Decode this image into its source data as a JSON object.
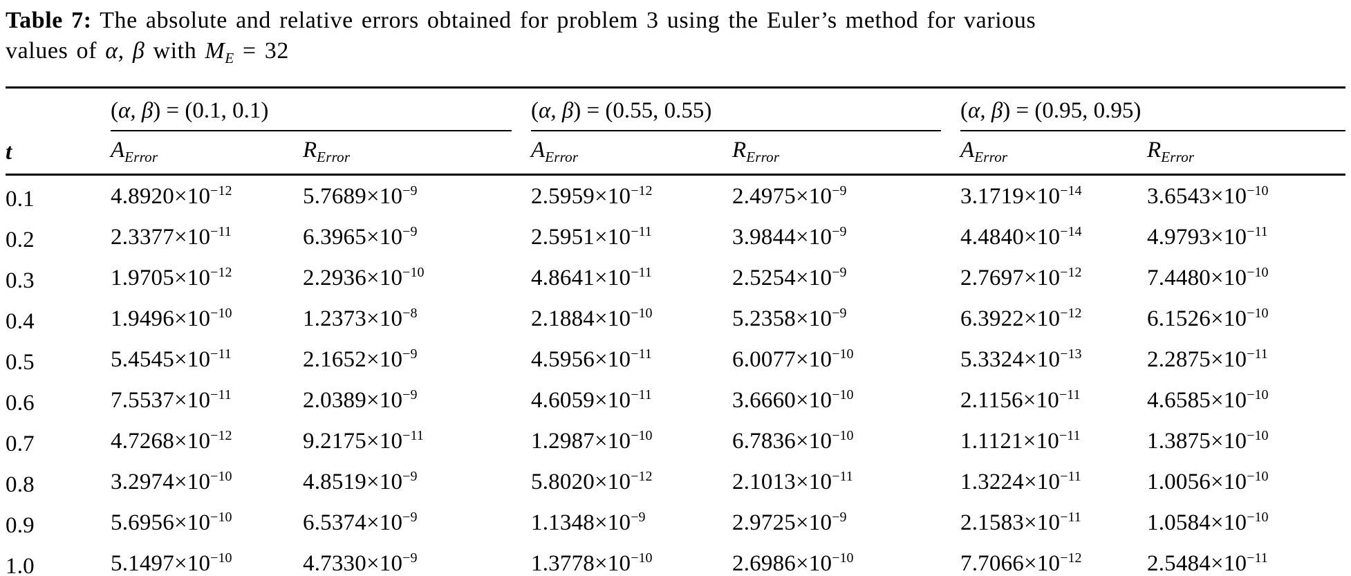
{
  "caption": {
    "label": "Table 7:",
    "line1_rest": " The absolute and relative errors obtained for problem 3 using the Euler’s method for various",
    "line2_pre": "values of ",
    "alpha_beta": "α, β",
    "mid": " with ",
    "M": "M",
    "M_sub": "E",
    "eq": " = 32"
  },
  "table": {
    "notation_times_ten": "×10",
    "groups": [
      {
        "open": "(",
        "greek": "α, β",
        "close": ") = ",
        "value": "(0.1, 0.1)"
      },
      {
        "open": "(",
        "greek": "α, β",
        "close": ") = ",
        "value": "(0.55, 0.55)"
      },
      {
        "open": "(",
        "greek": "α, β",
        "close": ") = ",
        "value": "(0.95, 0.95)"
      }
    ],
    "subheaders": {
      "t": "t",
      "A": {
        "letter": "A",
        "sub": "Error"
      },
      "R": {
        "letter": "R",
        "sub": "Error"
      }
    },
    "rows": [
      {
        "t": "0.1",
        "cells": [
          [
            "4.8920",
            "−12"
          ],
          [
            "5.7689",
            "−9"
          ],
          [
            "2.5959",
            "−12"
          ],
          [
            "2.4975",
            "−9"
          ],
          [
            "3.1719",
            "−14"
          ],
          [
            "3.6543",
            "−10"
          ]
        ]
      },
      {
        "t": "0.2",
        "cells": [
          [
            "2.3377",
            "−11"
          ],
          [
            "6.3965",
            "−9"
          ],
          [
            "2.5951",
            "−11"
          ],
          [
            "3.9844",
            "−9"
          ],
          [
            "4.4840",
            "−14"
          ],
          [
            "4.9793",
            "−11"
          ]
        ]
      },
      {
        "t": "0.3",
        "cells": [
          [
            "1.9705",
            "−12"
          ],
          [
            "2.2936",
            "−10"
          ],
          [
            "4.8641",
            "−11"
          ],
          [
            "2.5254",
            "−9"
          ],
          [
            "2.7697",
            "−12"
          ],
          [
            "7.4480",
            "−10"
          ]
        ]
      },
      {
        "t": "0.4",
        "cells": [
          [
            "1.9496",
            "−10"
          ],
          [
            "1.2373",
            "−8"
          ],
          [
            "2.1884",
            "−10"
          ],
          [
            "5.2358",
            "−9"
          ],
          [
            "6.3922",
            "−12"
          ],
          [
            "6.1526",
            "−10"
          ]
        ]
      },
      {
        "t": "0.5",
        "cells": [
          [
            "5.4545",
            "−11"
          ],
          [
            "2.1652",
            "−9"
          ],
          [
            "4.5956",
            "−11"
          ],
          [
            "6.0077",
            "−10"
          ],
          [
            "5.3324",
            "−13"
          ],
          [
            "2.2875",
            "−11"
          ]
        ]
      },
      {
        "t": "0.6",
        "cells": [
          [
            "7.5537",
            "−11"
          ],
          [
            "2.0389",
            "−9"
          ],
          [
            "4.6059",
            "−11"
          ],
          [
            "3.6660",
            "−10"
          ],
          [
            "2.1156",
            "−11"
          ],
          [
            "4.6585",
            "−10"
          ]
        ]
      },
      {
        "t": "0.7",
        "cells": [
          [
            "4.7268",
            "−12"
          ],
          [
            "9.2175",
            "−11"
          ],
          [
            "1.2987",
            "−10"
          ],
          [
            "6.7836",
            "−10"
          ],
          [
            "1.1121",
            "−11"
          ],
          [
            "1.3875",
            "−10"
          ]
        ]
      },
      {
        "t": "0.8",
        "cells": [
          [
            "3.2974",
            "−10"
          ],
          [
            "4.8519",
            "−9"
          ],
          [
            "5.8020",
            "−12"
          ],
          [
            "2.1013",
            "−11"
          ],
          [
            "1.3224",
            "−11"
          ],
          [
            "1.0056",
            "−10"
          ]
        ]
      },
      {
        "t": "0.9",
        "cells": [
          [
            "5.6956",
            "−10"
          ],
          [
            "6.5374",
            "−9"
          ],
          [
            "1.1348",
            "−9"
          ],
          [
            "2.9725",
            "−9"
          ],
          [
            "2.1583",
            "−11"
          ],
          [
            "1.0584",
            "−10"
          ]
        ]
      },
      {
        "t": "1.0",
        "cells": [
          [
            "5.1497",
            "−10"
          ],
          [
            "4.7330",
            "−9"
          ],
          [
            "1.3778",
            "−10"
          ],
          [
            "2.6986",
            "−10"
          ],
          [
            "7.7066",
            "−12"
          ],
          [
            "2.5484",
            "−11"
          ]
        ]
      }
    ]
  }
}
